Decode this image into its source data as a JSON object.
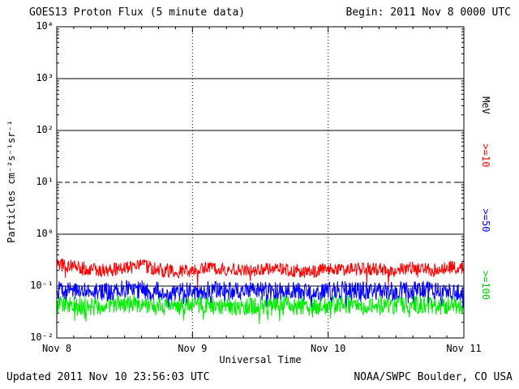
{
  "header": {
    "title": "GOES13 Proton Flux (5 minute data)",
    "begin": "Begin: 2011 Nov 8 0000 UTC"
  },
  "footer": {
    "updated": "Updated 2011 Nov 10 23:56:03 UTC",
    "credit": "NOAA/SWPC Boulder, CO USA"
  },
  "chart_data": {
    "type": "line",
    "title": "GOES13 Proton Flux (5 minute data)",
    "xlabel": "Universal Time",
    "ylabel": "Particles cm⁻²s⁻¹sr⁻¹",
    "x_ticks": [
      "Nov 8",
      "Nov 9",
      "Nov 10",
      "Nov 11"
    ],
    "x_days": 3,
    "y_tick_labels": [
      "10⁴",
      "10³",
      "10²",
      "10¹",
      "10⁰",
      "10⁻¹",
      "10⁻²"
    ],
    "y_tick_exponents": [
      4,
      3,
      2,
      1,
      0,
      -1,
      -2
    ],
    "ylim": [
      0.01,
      10000
    ],
    "yscale": "log",
    "grid": {
      "solid_decades": [
        3,
        2,
        0,
        -1
      ],
      "dashed_decades": [
        1
      ],
      "vertical_dotted_days": [
        1,
        2
      ]
    },
    "right_labels": [
      {
        "text": "MeV",
        "color": "#000000"
      },
      {
        "text": ">=10",
        "color": "#ff0000"
      },
      {
        "text": ">=50",
        "color": "#0000ff"
      },
      {
        "text": ">=100",
        "color": "#00cc00"
      }
    ],
    "seed": 20111108,
    "series": [
      {
        "name": ">=10 MeV",
        "color": "#ff0000",
        "units": "Particles cm-2 s-1 sr-1",
        "sample_interval_hours": 3,
        "values": [
          0.26,
          0.24,
          0.21,
          0.2,
          0.22,
          0.25,
          0.21,
          0.19,
          0.2,
          0.22,
          0.21,
          0.2,
          0.21,
          0.22,
          0.2,
          0.19,
          0.21,
          0.2,
          0.22,
          0.21,
          0.2,
          0.22,
          0.21,
          0.23,
          0.22
        ],
        "jitter": 0.13,
        "spike_prob": 0.05,
        "spike_extra": 0.2
      },
      {
        "name": ">=50 MeV",
        "color": "#0000ff",
        "units": "Particles cm-2 s-1 sr-1",
        "sample_interval_hours": 3,
        "values": [
          0.085,
          0.08,
          0.075,
          0.08,
          0.09,
          0.085,
          0.08,
          0.075,
          0.08,
          0.085,
          0.08,
          0.078,
          0.08,
          0.082,
          0.08,
          0.076,
          0.08,
          0.083,
          0.08,
          0.078,
          0.08,
          0.082,
          0.085,
          0.08,
          0.08
        ],
        "jitter": 0.18,
        "spike_prob": 0.08,
        "spike_extra": 0.22
      },
      {
        "name": ">=100 MeV",
        "color": "#00ee00",
        "units": "Particles cm-2 s-1 sr-1",
        "sample_interval_hours": 3,
        "values": [
          0.042,
          0.045,
          0.04,
          0.043,
          0.046,
          0.044,
          0.04,
          0.042,
          0.045,
          0.043,
          0.041,
          0.04,
          0.042,
          0.044,
          0.042,
          0.04,
          0.043,
          0.045,
          0.042,
          0.041,
          0.043,
          0.044,
          0.042,
          0.043,
          0.042
        ],
        "jitter": 0.18,
        "spike_prob": 0.08,
        "spike_extra": 0.22
      }
    ]
  }
}
